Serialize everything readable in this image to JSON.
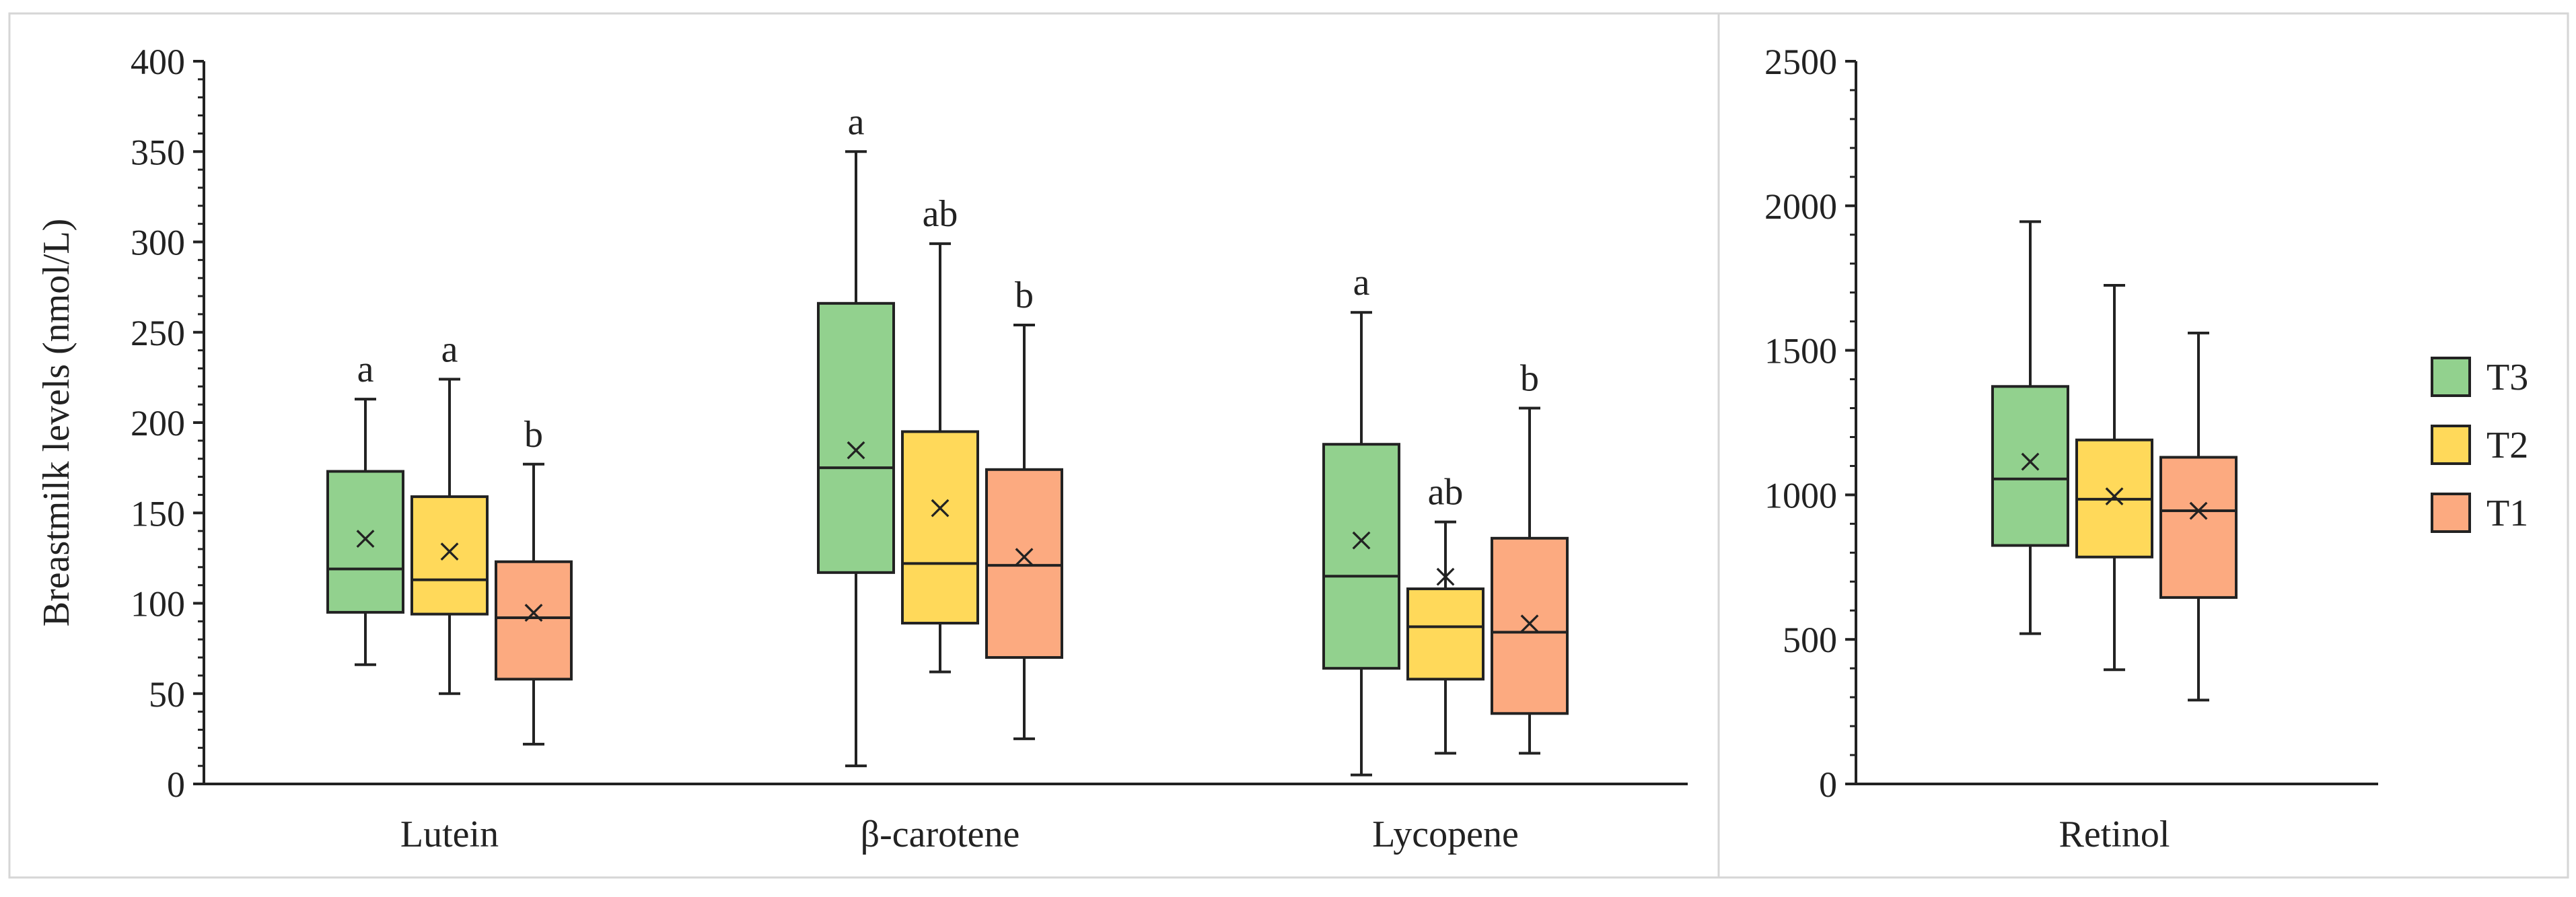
{
  "chart_data": [
    {
      "type": "box",
      "ylabel": "Breastmilk levels (nmol/L)",
      "ylim": [
        0,
        400
      ],
      "yticks": [
        0,
        50,
        100,
        150,
        200,
        250,
        300,
        350,
        400
      ],
      "categories": [
        "Lutein",
        "β-carotene",
        "Lycopene"
      ],
      "series_order": [
        "T3",
        "T2",
        "T1"
      ],
      "groups": [
        {
          "category": "Lutein",
          "boxes": [
            {
              "series": "T3",
              "min": 66,
              "q1": 95,
              "median": 119,
              "q3": 173,
              "max": 213,
              "mean": 135,
              "letter": "a"
            },
            {
              "series": "T2",
              "min": 50,
              "q1": 94,
              "median": 113,
              "q3": 159,
              "max": 224,
              "mean": 128,
              "letter": "a"
            },
            {
              "series": "T1",
              "min": 22,
              "q1": 58,
              "median": 92,
              "q3": 123,
              "max": 177,
              "mean": 94,
              "letter": "b"
            }
          ]
        },
        {
          "category": "β-carotene",
          "boxes": [
            {
              "series": "T3",
              "min": 10,
              "q1": 117,
              "median": 175,
              "q3": 266,
              "max": 350,
              "mean": 184,
              "letter": "a"
            },
            {
              "series": "T2",
              "min": 62,
              "q1": 89,
              "median": 122,
              "q3": 195,
              "max": 299,
              "mean": 152,
              "letter": "ab"
            },
            {
              "series": "T1",
              "min": 25,
              "q1": 70,
              "median": 121,
              "q3": 174,
              "max": 254,
              "mean": 125,
              "letter": "b"
            }
          ]
        },
        {
          "category": "Lycopene",
          "boxes": [
            {
              "series": "T3",
              "min": 5,
              "q1": 64,
              "median": 115,
              "q3": 188,
              "max": 261,
              "mean": 134,
              "letter": "a"
            },
            {
              "series": "T2",
              "min": 17,
              "q1": 58,
              "median": 87,
              "q3": 108,
              "max": 145,
              "mean": 114,
              "letter": "ab"
            },
            {
              "series": "T1",
              "min": 17,
              "q1": 39,
              "median": 84,
              "q3": 136,
              "max": 208,
              "mean": 88,
              "letter": "b"
            }
          ]
        }
      ]
    },
    {
      "type": "box",
      "ylim": [
        0,
        2500
      ],
      "yticks": [
        0,
        500,
        1000,
        1500,
        2000,
        2500
      ],
      "categories": [
        "Retinol"
      ],
      "series_order": [
        "T3",
        "T2",
        "T1"
      ],
      "groups": [
        {
          "category": "Retinol",
          "boxes": [
            {
              "series": "T3",
              "min": 520,
              "q1": 825,
              "median": 1055,
              "q3": 1375,
              "max": 1945,
              "mean": 1110,
              "letter": ""
            },
            {
              "series": "T2",
              "min": 395,
              "q1": 785,
              "median": 985,
              "q3": 1190,
              "max": 1725,
              "mean": 990,
              "letter": ""
            },
            {
              "series": "T1",
              "min": 290,
              "q1": 645,
              "median": 945,
              "q3": 1130,
              "max": 1560,
              "mean": 940,
              "letter": ""
            }
          ]
        }
      ]
    }
  ],
  "legend": {
    "position": "right",
    "items": [
      {
        "label": "T3",
        "color": "#92d18e"
      },
      {
        "label": "T2",
        "color": "#ffd95a"
      },
      {
        "label": "T1",
        "color": "#fcaa80"
      }
    ]
  },
  "mean_marker": "×"
}
